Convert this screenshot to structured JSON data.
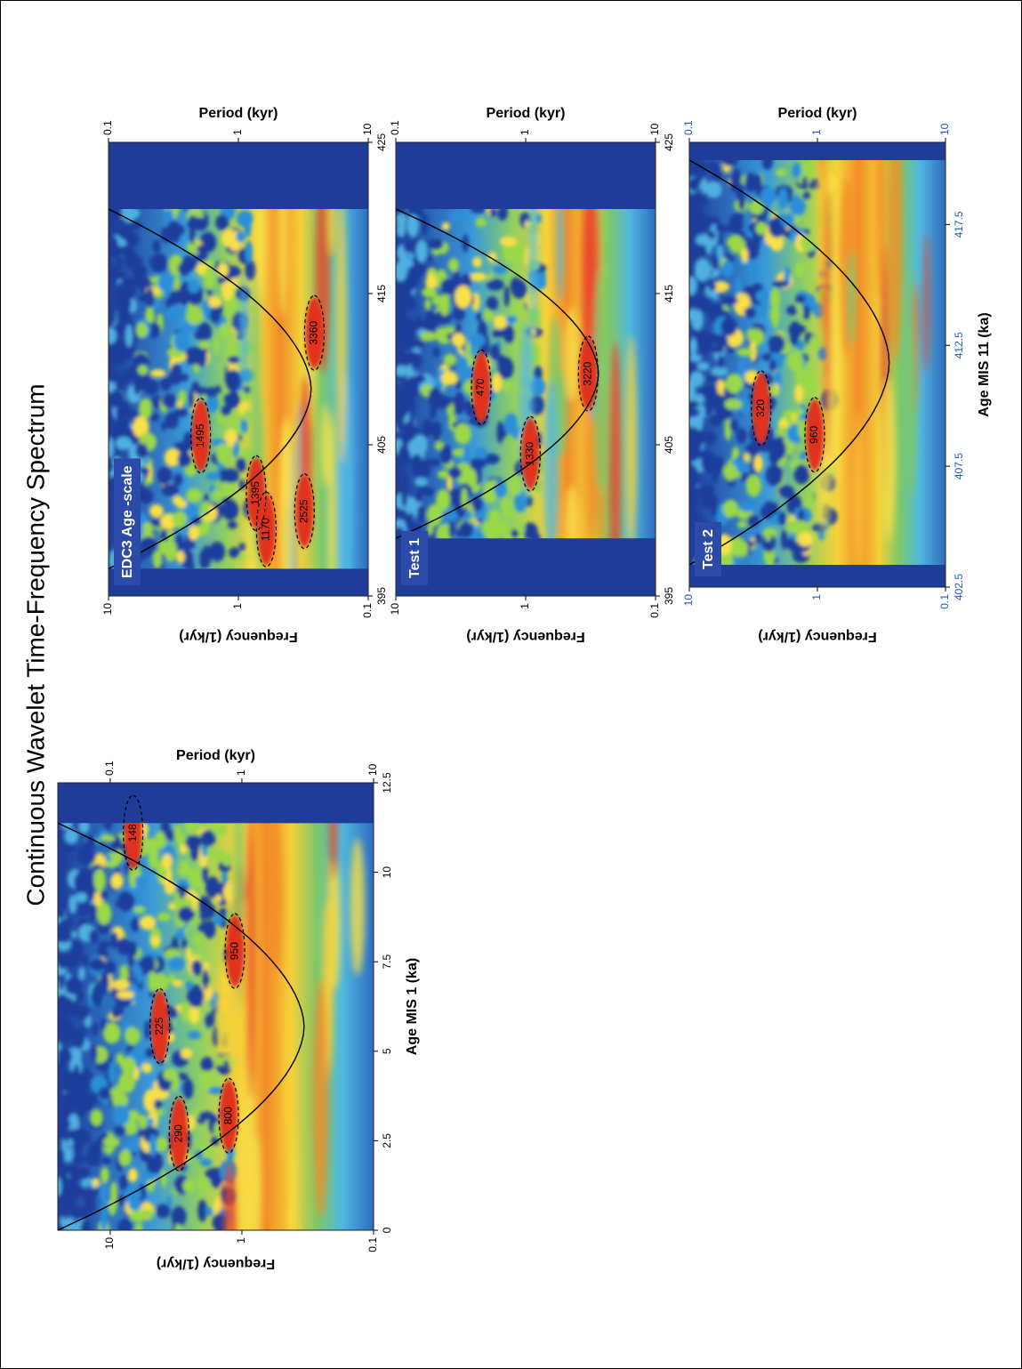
{
  "title": "Continuous Wavelet Time-Frequency Spectrum",
  "chart_data": [
    {
      "type": "wavelet",
      "xlabel": "Age MIS 1 (ka)",
      "ylabel": "Frequency (1/kyr)",
      "y2label": "Period (kyr)",
      "xlim": [
        0,
        12.5
      ],
      "xticks": [
        0,
        2.5,
        5,
        7.5,
        10,
        12.5
      ],
      "ylim": [
        0.1,
        25
      ],
      "yticks": [
        0.1,
        1,
        10
      ],
      "log_y": true,
      "y2lim": [
        10,
        0.04
      ],
      "y2ticks": [
        0.1,
        1,
        10
      ],
      "tick_color": "#000000",
      "annotations": [
        {
          "text": "148",
          "x": 11.1,
          "y": 6.7
        },
        {
          "text": "225",
          "x": 5.7,
          "y": 4.2
        },
        {
          "text": "290",
          "x": 2.7,
          "y": 3.0
        },
        {
          "text": "950",
          "x": 7.8,
          "y": 1.13
        },
        {
          "text": "800",
          "x": 3.2,
          "y": 1.26
        }
      ]
    },
    {
      "type": "wavelet",
      "label": "EDC3 Age -scale",
      "ylabel": "Frequency (1/kyr)",
      "y2label": "Period (kyr)",
      "xlim": [
        395,
        425
      ],
      "xticks": [
        395,
        405,
        415,
        425
      ],
      "ylim": [
        0.1,
        10
      ],
      "yticks": [
        0.1,
        1,
        10
      ],
      "log_y": true,
      "y2lim": [
        10,
        0.1
      ],
      "y2ticks": [
        0.1,
        1,
        10
      ],
      "tick_color": "#000000",
      "annotations": [
        {
          "text": "1495",
          "x": 405.6,
          "y": 1.95
        },
        {
          "text": "1395",
          "x": 401.8,
          "y": 0.73
        },
        {
          "text": "1170",
          "x": 399.4,
          "y": 0.61
        },
        {
          "text": "2525",
          "x": 400.6,
          "y": 0.31
        },
        {
          "text": "3360",
          "x": 412.4,
          "y": 0.26
        }
      ]
    },
    {
      "type": "wavelet",
      "label": "Test 1",
      "ylabel": "Frequency (1/kyr)",
      "y2label": "Period (kyr)",
      "xlim": [
        395,
        425
      ],
      "xticks": [
        395,
        405,
        415,
        425
      ],
      "ylim": [
        0.1,
        10
      ],
      "yticks": [
        0.1,
        1,
        10
      ],
      "log_y": true,
      "y2lim": [
        10,
        0.1
      ],
      "y2ticks": [
        0.1,
        1,
        10
      ],
      "tick_color": "#000000",
      "annotations": [
        {
          "text": "470",
          "x": 408.8,
          "y": 2.2
        },
        {
          "text": "1330",
          "x": 404.4,
          "y": 0.92
        },
        {
          "text": "3220",
          "x": 409.7,
          "y": 0.33
        }
      ]
    },
    {
      "type": "wavelet",
      "label": "Test 2",
      "xlabel": "Age MIS 11 (ka)",
      "ylabel": "Frequency (1/kyr)",
      "y2label": "Period (kyr)",
      "xlim": [
        402.5,
        420.9
      ],
      "xticks": [
        402.5,
        407.5,
        412.5,
        417.5
      ],
      "ylim": [
        0.1,
        10
      ],
      "yticks": [
        0.1,
        1,
        10
      ],
      "log_y": true,
      "y2lim": [
        10,
        0.1
      ],
      "y2ticks": [
        0.1,
        1,
        10
      ],
      "tick_color": "#2255cc",
      "annotations": [
        {
          "text": "320",
          "x": 409.9,
          "y": 2.75
        },
        {
          "text": "960",
          "x": 408.8,
          "y": 1.05
        }
      ]
    }
  ]
}
